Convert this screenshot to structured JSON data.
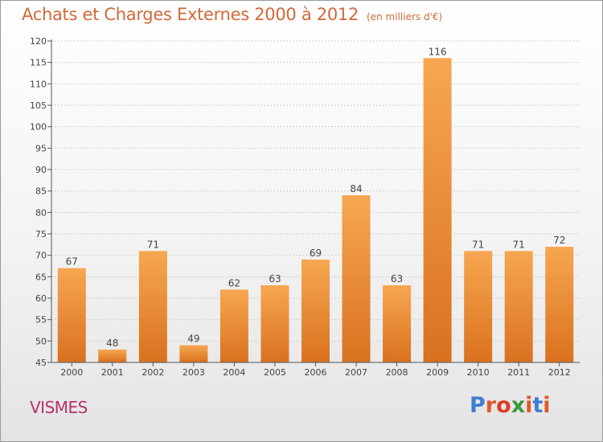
{
  "header": {
    "title": "Achats et Charges Externes 2000 à 2012",
    "unit_note": "(en milliers d'€)"
  },
  "footer": {
    "commune": "VISMES",
    "brand": "Proxiti"
  },
  "colors": {
    "title": "#d0693a",
    "commune": "#b8316b",
    "bar_light": "#f7a751",
    "bar_dark": "#d9711f",
    "grid": "#cfcfcf",
    "brand_letters": [
      "#3e7fcf",
      "#e0592a",
      "#e03a2a",
      "#3a9a3a",
      "#e0592a",
      "#3e7fcf",
      "#e0592a"
    ]
  },
  "chart_data": {
    "type": "bar",
    "title": "Achats et Charges Externes 2000 à 2012",
    "subtitle": "(en milliers d'€)",
    "xlabel": "",
    "ylabel": "",
    "categories": [
      "2000",
      "2001",
      "2002",
      "2003",
      "2004",
      "2005",
      "2006",
      "2007",
      "2008",
      "2009",
      "2010",
      "2011",
      "2012"
    ],
    "values": [
      67,
      48,
      71,
      49,
      62,
      63,
      69,
      84,
      63,
      116,
      71,
      71,
      72
    ],
    "ylim": [
      45,
      120
    ],
    "yticks": [
      45,
      50,
      55,
      60,
      65,
      70,
      75,
      80,
      85,
      90,
      95,
      100,
      105,
      110,
      115,
      120
    ],
    "grid": true,
    "legend": "none"
  }
}
